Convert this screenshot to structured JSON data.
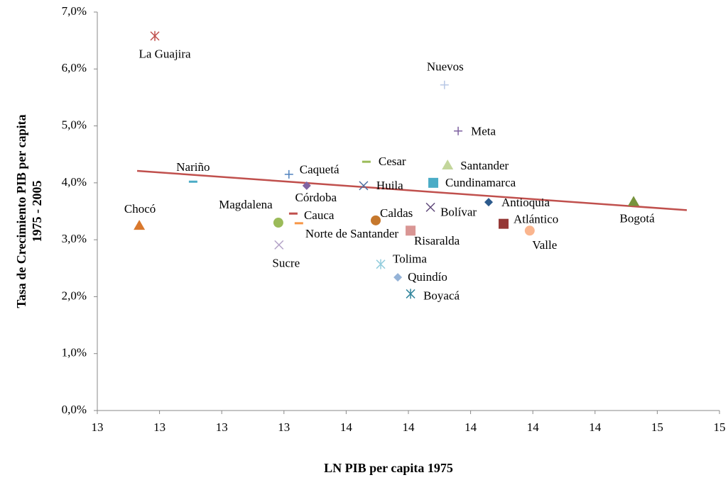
{
  "chart_data": {
    "type": "scatter",
    "xlabel": "LN PIB per capita 1975",
    "ylabel": [
      "Tasa de Crecimiento PIB per capita",
      "1975 - 2005"
    ],
    "xlim": [
      12.8,
      14.8
    ],
    "xticks": [
      {
        "value": 12.8,
        "label": "13"
      },
      {
        "value": 13.0,
        "label": "13"
      },
      {
        "value": 13.2,
        "label": "13"
      },
      {
        "value": 13.4,
        "label": "13"
      },
      {
        "value": 13.6,
        "label": "14"
      },
      {
        "value": 13.8,
        "label": "14"
      },
      {
        "value": 14.0,
        "label": "14"
      },
      {
        "value": 14.2,
        "label": "14"
      },
      {
        "value": 14.4,
        "label": "14"
      },
      {
        "value": 14.6,
        "label": "15"
      },
      {
        "value": 14.8,
        "label": "15"
      }
    ],
    "ylim": [
      0,
      7
    ],
    "yticks": [
      {
        "value": 0,
        "label": "0,0%"
      },
      {
        "value": 1,
        "label": "1,0%"
      },
      {
        "value": 2,
        "label": "2,0%"
      },
      {
        "value": 3,
        "label": "3,0%"
      },
      {
        "value": 4,
        "label": "4,0%"
      },
      {
        "value": 5,
        "label": "5,0%"
      },
      {
        "value": 6,
        "label": "6,0%"
      },
      {
        "value": 7,
        "label": "7,0%"
      }
    ],
    "trendline": {
      "color": "#c0504d",
      "x": [
        12.928,
        14.695
      ],
      "y": [
        4.21,
        3.52
      ]
    },
    "series": [
      {
        "name": "La Guajira",
        "color": "#c0504d",
        "marker": "asterisk",
        "x": [
          12.985
        ],
        "values": [
          6.58
        ]
      },
      {
        "name": "Nuevos",
        "color": "#b9c8e6",
        "marker": "plus",
        "x": [
          13.916
        ],
        "values": [
          5.72
        ]
      },
      {
        "name": "Meta",
        "color": "#7d60a0",
        "marker": "plus",
        "x": [
          13.96
        ],
        "values": [
          4.91
        ]
      },
      {
        "name": "Cesar",
        "color": "#9bbb59",
        "marker": "dash",
        "x": [
          13.665
        ],
        "values": [
          4.37
        ]
      },
      {
        "name": "Santander",
        "color": "#c3d69b",
        "marker": "triangle",
        "x": [
          13.926
        ],
        "values": [
          4.31
        ]
      },
      {
        "name": "Caquetá",
        "color": "#4f81bd",
        "marker": "plus",
        "x": [
          13.416
        ],
        "values": [
          4.15
        ]
      },
      {
        "name": "Cundinamarca",
        "color": "#4bacc6",
        "marker": "square",
        "x": [
          13.88
        ],
        "values": [
          4.0
        ]
      },
      {
        "name": "Nariño",
        "color": "#4bacc6",
        "marker": "dash",
        "x": [
          13.108
        ],
        "values": [
          4.02
        ]
      },
      {
        "name": "Córdoba",
        "color": "#8064a2",
        "marker": "diamond",
        "x": [
          13.473
        ],
        "values": [
          3.95
        ]
      },
      {
        "name": "Huila",
        "color": "#4f6fa0",
        "marker": "cross",
        "x": [
          13.656
        ],
        "values": [
          3.95
        ]
      },
      {
        "name": "Antioquia",
        "color": "#2c5a8c",
        "marker": "diamond",
        "x": [
          14.058
        ],
        "values": [
          3.66
        ]
      },
      {
        "name": "Bogotá",
        "color": "#77933c",
        "marker": "triangle",
        "x": [
          14.524
        ],
        "values": [
          3.67
        ]
      },
      {
        "name": "Bolívar",
        "color": "#604a7b",
        "marker": "cross",
        "x": [
          13.871
        ],
        "values": [
          3.57
        ]
      },
      {
        "name": "Cauca",
        "color": "#c0504d",
        "marker": "dash",
        "x": [
          13.43
        ],
        "values": [
          3.46
        ]
      },
      {
        "name": "Chocó",
        "color": "#d9782d",
        "marker": "triangle",
        "x": [
          12.935
        ],
        "values": [
          3.25
        ]
      },
      {
        "name": "Magdalena",
        "color": "#9bbb59",
        "marker": "circle",
        "x": [
          13.382
        ],
        "values": [
          3.3
        ]
      },
      {
        "name": "Caldas",
        "color": "#c6782d",
        "marker": "circle",
        "x": [
          13.695
        ],
        "values": [
          3.34
        ]
      },
      {
        "name": "Norte de Santander",
        "color": "#f79646",
        "marker": "dash",
        "x": [
          13.448
        ],
        "values": [
          3.29
        ]
      },
      {
        "name": "Atlántico",
        "color": "#953735",
        "marker": "square",
        "x": [
          14.106
        ],
        "values": [
          3.28
        ]
      },
      {
        "name": "Risaralda",
        "color": "#d99694",
        "marker": "square",
        "x": [
          13.807
        ],
        "values": [
          3.16
        ]
      },
      {
        "name": "Valle",
        "color": "#fab58e",
        "marker": "circle",
        "x": [
          14.19
        ],
        "values": [
          3.16
        ]
      },
      {
        "name": "Sucre",
        "color": "#b3a2c7",
        "marker": "cross",
        "x": [
          13.384
        ],
        "values": [
          2.91
        ]
      },
      {
        "name": "Tolima",
        "color": "#93cddd",
        "marker": "asterisk",
        "x": [
          13.711
        ],
        "values": [
          2.57
        ]
      },
      {
        "name": "Quindío",
        "color": "#95b3d7",
        "marker": "diamond",
        "x": [
          13.766
        ],
        "values": [
          2.34
        ]
      },
      {
        "name": "Boyacá",
        "color": "#31859c",
        "marker": "asterisk",
        "x": [
          13.807
        ],
        "values": [
          2.05
        ]
      }
    ]
  }
}
